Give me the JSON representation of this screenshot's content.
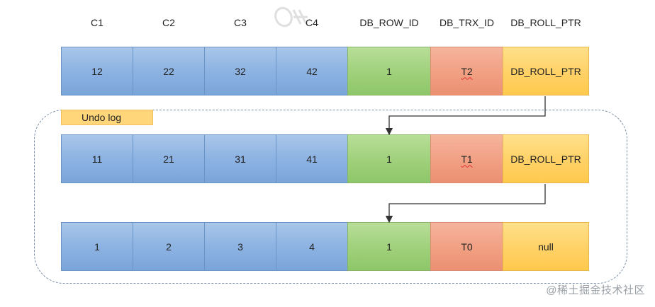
{
  "headers": {
    "c1": "C1",
    "c2": "C2",
    "c3": "C3",
    "c4": "C4",
    "row_id": "DB_ROW_ID",
    "trx_id": "DB_TRX_ID",
    "roll_ptr": "DB_ROLL_PTR"
  },
  "undo_label": "Undo log",
  "rows": [
    {
      "c1": "12",
      "c2": "22",
      "c3": "32",
      "c4": "42",
      "row_id": "1",
      "trx_id": "T2",
      "roll_ptr": "DB_ROLL_PTR"
    },
    {
      "c1": "11",
      "c2": "21",
      "c3": "31",
      "c4": "41",
      "row_id": "1",
      "trx_id": "T1",
      "roll_ptr": "DB_ROLL_PTR"
    },
    {
      "c1": "1",
      "c2": "2",
      "c3": "3",
      "c4": "4",
      "row_id": "1",
      "trx_id": "T0",
      "roll_ptr": "null"
    }
  ],
  "watermark": "@稀土掘金技术社区",
  "colors": {
    "column_blue": "#8db3e2",
    "row_id_green": "#9fd07a",
    "trx_id_red": "#f19f82",
    "roll_ptr_yellow": "#ffd166",
    "undo_label_bg": "#ffd77a",
    "dashed_border": "#7b8fa8"
  }
}
